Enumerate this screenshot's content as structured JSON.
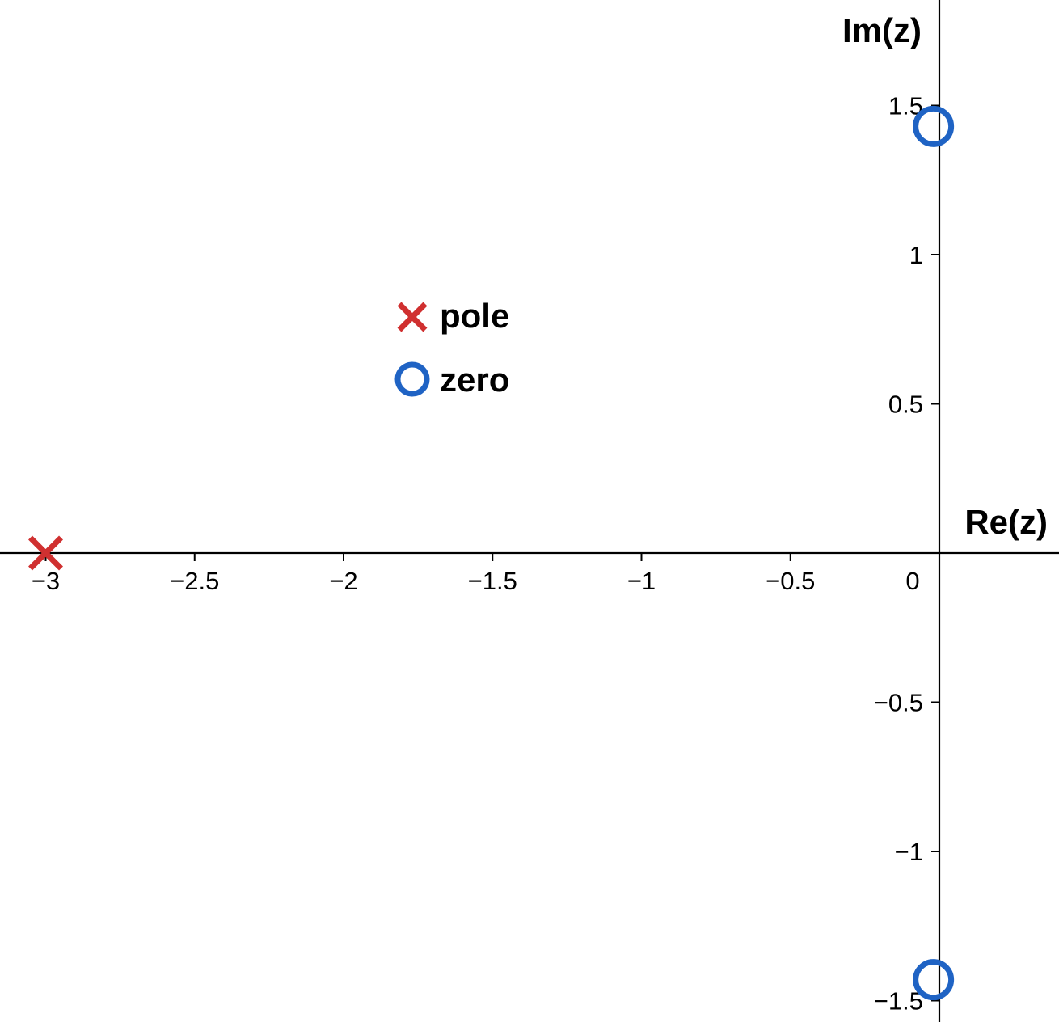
{
  "chart_data": {
    "type": "scatter",
    "title": "",
    "xlabel": "Re(z)",
    "ylabel": "Im(z)",
    "xlim": [
      -3.15,
      0.4
    ],
    "ylim": [
      -1.57,
      1.85
    ],
    "grid": false,
    "legend_position": "center-left",
    "x_ticks": [
      {
        "value": -3,
        "label": "−3"
      },
      {
        "value": -2.5,
        "label": "−2.5"
      },
      {
        "value": -2,
        "label": "−2"
      },
      {
        "value": -1.5,
        "label": "−1.5"
      },
      {
        "value": -1,
        "label": "−1"
      },
      {
        "value": -0.5,
        "label": "−0.5"
      },
      {
        "value": 0,
        "label": "0"
      }
    ],
    "y_ticks": [
      {
        "value": 1.5,
        "label": "1.5"
      },
      {
        "value": 1,
        "label": "1"
      },
      {
        "value": 0.5,
        "label": "0.5"
      },
      {
        "value": -0.5,
        "label": "−0.5"
      },
      {
        "value": -1,
        "label": "−1"
      },
      {
        "value": -1.5,
        "label": "−1.5"
      }
    ],
    "series": [
      {
        "name": "pole",
        "marker": "x",
        "color": "#d03030",
        "points": [
          {
            "x": -3,
            "y": 0
          }
        ]
      },
      {
        "name": "zero",
        "marker": "o",
        "color": "#1f63c4",
        "points": [
          {
            "x": -0.02,
            "y": 1.43
          },
          {
            "x": -0.02,
            "y": -1.43
          }
        ]
      }
    ]
  }
}
